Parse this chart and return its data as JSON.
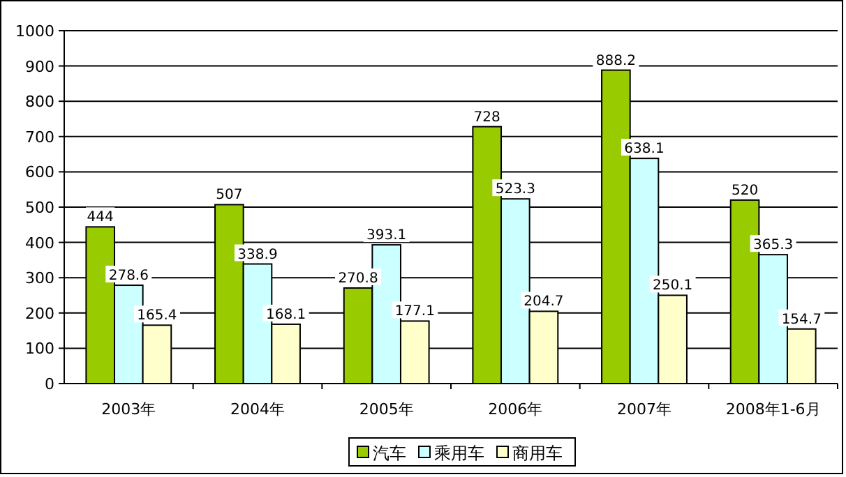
{
  "chart_data": {
    "type": "bar",
    "categories": [
      "2003年",
      "2004年",
      "2005年",
      "2006年",
      "2007年",
      "2008年1-6月"
    ],
    "series": [
      {
        "name": "汽车",
        "color": "#99cc00",
        "values": [
          444,
          507,
          270.8,
          728,
          888.2,
          520
        ]
      },
      {
        "name": "乘用车",
        "color": "#ccffff",
        "values": [
          278.6,
          338.9,
          393.1,
          523.3,
          638.1,
          365.3
        ]
      },
      {
        "name": "商用车",
        "color": "#ffffcc",
        "values": [
          165.4,
          168.1,
          177.1,
          204.7,
          250.1,
          154.7
        ]
      }
    ],
    "ylim": [
      0,
      1000
    ],
    "yticks": [
      0,
      100,
      200,
      300,
      400,
      500,
      600,
      700,
      800,
      900,
      1000
    ],
    "grid": "y",
    "legend": "bottom",
    "data_labels": true
  }
}
